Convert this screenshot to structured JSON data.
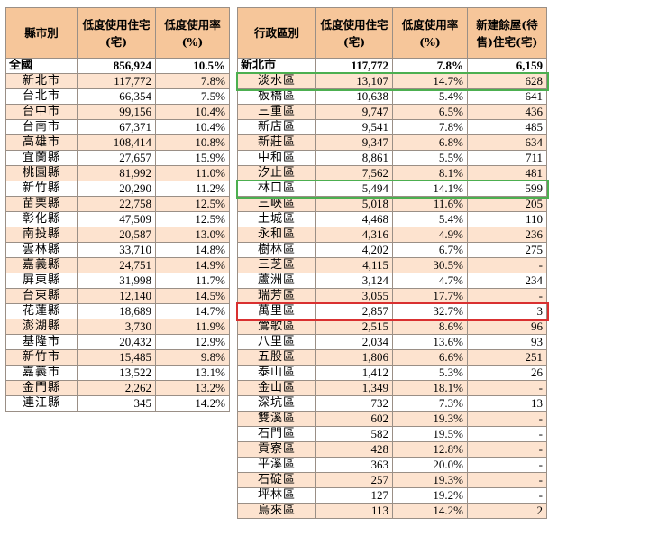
{
  "left_table": {
    "headers": [
      "縣市別",
      "低度使用住宅(宅)",
      "低度使用率(%)"
    ],
    "total": {
      "name": "全國",
      "count": "856,924",
      "rate": "10.5%"
    },
    "rows": [
      {
        "name": "新北市",
        "count": "117,772",
        "rate": "7.8%"
      },
      {
        "name": "台北市",
        "count": "66,354",
        "rate": "7.5%"
      },
      {
        "name": "台中市",
        "count": "99,156",
        "rate": "10.4%"
      },
      {
        "name": "台南市",
        "count": "67,371",
        "rate": "10.4%"
      },
      {
        "name": "高雄市",
        "count": "108,414",
        "rate": "10.8%"
      },
      {
        "name": "宜蘭縣",
        "count": "27,657",
        "rate": "15.9%"
      },
      {
        "name": "桃園縣",
        "count": "81,992",
        "rate": "11.0%"
      },
      {
        "name": "新竹縣",
        "count": "20,290",
        "rate": "11.2%"
      },
      {
        "name": "苗栗縣",
        "count": "22,758",
        "rate": "12.5%"
      },
      {
        "name": "彰化縣",
        "count": "47,509",
        "rate": "12.5%"
      },
      {
        "name": "南投縣",
        "count": "20,587",
        "rate": "13.0%"
      },
      {
        "name": "雲林縣",
        "count": "33,710",
        "rate": "14.8%"
      },
      {
        "name": "嘉義縣",
        "count": "24,751",
        "rate": "14.9%"
      },
      {
        "name": "屏東縣",
        "count": "31,998",
        "rate": "11.7%"
      },
      {
        "name": "台東縣",
        "count": "12,140",
        "rate": "14.5%"
      },
      {
        "name": "花蓮縣",
        "count": "18,689",
        "rate": "14.7%"
      },
      {
        "name": "澎湖縣",
        "count": "3,730",
        "rate": "11.9%"
      },
      {
        "name": "基隆市",
        "count": "20,432",
        "rate": "12.9%"
      },
      {
        "name": "新竹市",
        "count": "15,485",
        "rate": "9.8%"
      },
      {
        "name": "嘉義市",
        "count": "13,522",
        "rate": "13.1%"
      },
      {
        "name": "金門縣",
        "count": "2,262",
        "rate": "13.2%"
      },
      {
        "name": "連江縣",
        "count": "345",
        "rate": "14.2%"
      }
    ]
  },
  "right_table": {
    "headers": [
      "行政區別",
      "低度使用住宅(宅)",
      "低度使用率(%)",
      "新建餘屋(待售)住宅(宅)"
    ],
    "total": {
      "name": "新北市",
      "count": "117,772",
      "rate": "7.8%",
      "new": "6,159"
    },
    "rows": [
      {
        "name": "淡水區",
        "count": "13,107",
        "rate": "14.7%",
        "new": "628",
        "highlight": "green"
      },
      {
        "name": "板橋區",
        "count": "10,638",
        "rate": "5.4%",
        "new": "641"
      },
      {
        "name": "三重區",
        "count": "9,747",
        "rate": "6.5%",
        "new": "436"
      },
      {
        "name": "新店區",
        "count": "9,541",
        "rate": "7.8%",
        "new": "485"
      },
      {
        "name": "新莊區",
        "count": "9,347",
        "rate": "6.8%",
        "new": "634"
      },
      {
        "name": "中和區",
        "count": "8,861",
        "rate": "5.5%",
        "new": "711"
      },
      {
        "name": "汐止區",
        "count": "7,562",
        "rate": "8.1%",
        "new": "481"
      },
      {
        "name": "林口區",
        "count": "5,494",
        "rate": "14.1%",
        "new": "599",
        "highlight": "green"
      },
      {
        "name": "三峽區",
        "count": "5,018",
        "rate": "11.6%",
        "new": "205"
      },
      {
        "name": "土城區",
        "count": "4,468",
        "rate": "5.4%",
        "new": "110"
      },
      {
        "name": "永和區",
        "count": "4,316",
        "rate": "4.9%",
        "new": "236"
      },
      {
        "name": "樹林區",
        "count": "4,202",
        "rate": "6.7%",
        "new": "275"
      },
      {
        "name": "三芝區",
        "count": "4,115",
        "rate": "30.5%",
        "new": "-"
      },
      {
        "name": "蘆洲區",
        "count": "3,124",
        "rate": "4.7%",
        "new": "234"
      },
      {
        "name": "瑞芳區",
        "count": "3,055",
        "rate": "17.7%",
        "new": "-"
      },
      {
        "name": "萬里區",
        "count": "2,857",
        "rate": "32.7%",
        "new": "3",
        "highlight": "red"
      },
      {
        "name": "鶯歌區",
        "count": "2,515",
        "rate": "8.6%",
        "new": "96"
      },
      {
        "name": "八里區",
        "count": "2,034",
        "rate": "13.6%",
        "new": "93"
      },
      {
        "name": "五股區",
        "count": "1,806",
        "rate": "6.6%",
        "new": "251"
      },
      {
        "name": "泰山區",
        "count": "1,412",
        "rate": "5.3%",
        "new": "26"
      },
      {
        "name": "金山區",
        "count": "1,349",
        "rate": "18.1%",
        "new": "-"
      },
      {
        "name": "深坑區",
        "count": "732",
        "rate": "7.3%",
        "new": "13"
      },
      {
        "name": "雙溪區",
        "count": "602",
        "rate": "19.3%",
        "new": "-"
      },
      {
        "name": "石門區",
        "count": "582",
        "rate": "19.5%",
        "new": "-"
      },
      {
        "name": "貢寮區",
        "count": "428",
        "rate": "12.8%",
        "new": "-"
      },
      {
        "name": "平溪區",
        "count": "363",
        "rate": "20.0%",
        "new": "-"
      },
      {
        "name": "石碇區",
        "count": "257",
        "rate": "19.3%",
        "new": "-"
      },
      {
        "name": "坪林區",
        "count": "127",
        "rate": "19.2%",
        "new": "-"
      },
      {
        "name": "烏來區",
        "count": "113",
        "rate": "14.2%",
        "new": "2"
      }
    ]
  },
  "colors": {
    "header_bg": "#f6c69a",
    "stripe_bg": "#fde3cf",
    "green_box": "#4caf50",
    "red_box": "#d93030"
  }
}
